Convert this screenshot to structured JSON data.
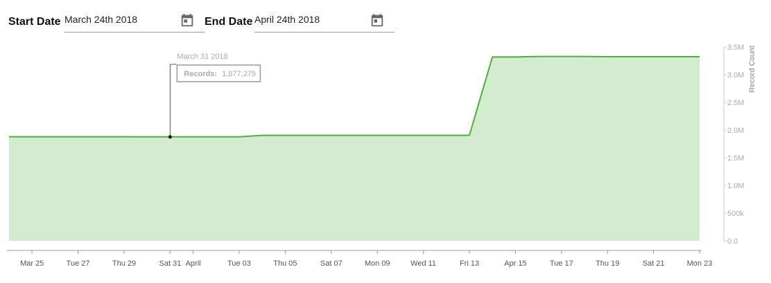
{
  "filters": {
    "start_label": "Start Date",
    "start_value": "March 24th 2018",
    "end_label": "End Date",
    "end_value": "April 24th 2018",
    "calendar_icon": "calendar-icon"
  },
  "colors": {
    "line": "#4caf3a",
    "fill": "#d3ecd0",
    "axis": "#999999",
    "tick_text": "#555555",
    "tooltip_border": "#999999",
    "tooltip_text": "#aaaaaa",
    "calendar_icon": "#666666"
  },
  "chart_data": {
    "type": "area",
    "title": "",
    "xlabel": "",
    "ylabel": "Record Count",
    "y_axis_position": "right",
    "ylim": [
      0,
      3500000
    ],
    "y_ticks": [
      0,
      500000,
      1000000,
      1500000,
      2000000,
      2500000,
      3000000,
      3500000
    ],
    "y_tick_labels": [
      "0.0",
      "500k",
      "1.0M",
      "1.5M",
      "2.0M",
      "2.5M",
      "3.0M",
      "3.5M"
    ],
    "x_range": [
      "2018-03-24",
      "2018-04-23"
    ],
    "x_tick_dates": [
      "2018-03-25",
      "2018-03-27",
      "2018-03-29",
      "2018-03-31",
      "2018-04-01",
      "2018-04-03",
      "2018-04-05",
      "2018-04-07",
      "2018-04-09",
      "2018-04-11",
      "2018-04-13",
      "2018-04-15",
      "2018-04-17",
      "2018-04-19",
      "2018-04-21",
      "2018-04-23"
    ],
    "x_tick_labels": [
      "Mar 25",
      "Tue 27",
      "Thu 29",
      "Sat 31",
      "April",
      "Tue 03",
      "Thu 05",
      "Sat 07",
      "Mon 09",
      "Wed 11",
      "Fri 13",
      "Apr 15",
      "Tue 17",
      "Thu 19",
      "Sat 21",
      "Mon 23"
    ],
    "grid": false,
    "series": [
      {
        "x": [
          "2018-03-24",
          "2018-03-25",
          "2018-03-26",
          "2018-03-27",
          "2018-03-28",
          "2018-03-29",
          "2018-03-30",
          "2018-03-31",
          "2018-04-01",
          "2018-04-02",
          "2018-04-03",
          "2018-04-04",
          "2018-04-05",
          "2018-04-06",
          "2018-04-07",
          "2018-04-08",
          "2018-04-09",
          "2018-04-10",
          "2018-04-11",
          "2018-04-12",
          "2018-04-13",
          "2018-04-14",
          "2018-04-15",
          "2018-04-16",
          "2018-04-17",
          "2018-04-18",
          "2018-04-19",
          "2018-04-20",
          "2018-04-21",
          "2018-04-22",
          "2018-04-23"
        ],
        "y": [
          1880000,
          1880000,
          1880000,
          1880000,
          1880000,
          1880000,
          1877275,
          1877275,
          1877275,
          1877275,
          1877275,
          1905000,
          1905000,
          1905000,
          1905000,
          1905000,
          1905000,
          1905000,
          1905000,
          1905000,
          1905000,
          3320000,
          3320000,
          3330000,
          3330000,
          3330000,
          3325000,
          3325000,
          3325000,
          3325000,
          3325000
        ]
      }
    ],
    "tooltip": {
      "date": "March 31 2018",
      "x": "2018-03-31",
      "label": "Records:",
      "value_text": "1,877,275",
      "value": 1877275
    }
  }
}
